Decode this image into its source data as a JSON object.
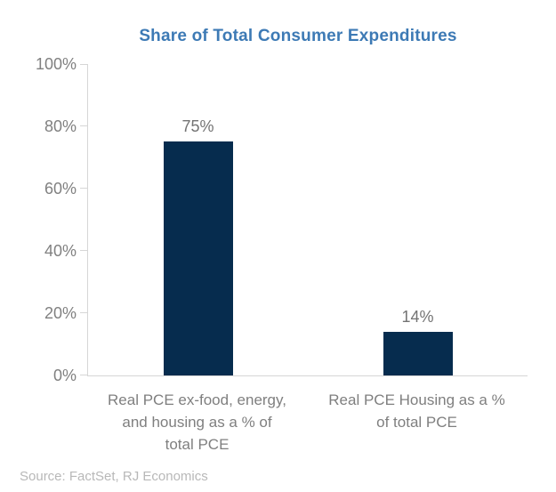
{
  "chart_data": {
    "type": "bar",
    "title": "Share of Total Consumer Expenditures",
    "xlabel": "",
    "ylabel": "",
    "categories": [
      "Real PCE ex-food, energy, and housing as a % of total PCE",
      "Real PCE Housing as a % of total PCE"
    ],
    "category_label_lines": [
      [
        "Real PCE ex-food, energy,",
        "and housing as a % of",
        "total PCE"
      ],
      [
        "Real PCE Housing as a %",
        "of total PCE"
      ]
    ],
    "values": [
      75,
      14
    ],
    "data_labels": [
      "75%",
      "14%"
    ],
    "ylim": [
      0,
      100
    ],
    "yticks": [
      0,
      20,
      40,
      60,
      80,
      100
    ],
    "ytick_labels": [
      "0%",
      "20%",
      "40%",
      "60%",
      "80%",
      "100%"
    ],
    "grid": false,
    "legend": "none",
    "colors": {
      "bar": "#062c4e",
      "title": "#3d7ab5",
      "axis_line": "#d6d6d6",
      "tick_label": "#808080",
      "data_label": "#737373",
      "category_label": "#7f7f7f",
      "source": "#b8b8b8"
    }
  },
  "source_note": "Source: FactSet, RJ Economics"
}
